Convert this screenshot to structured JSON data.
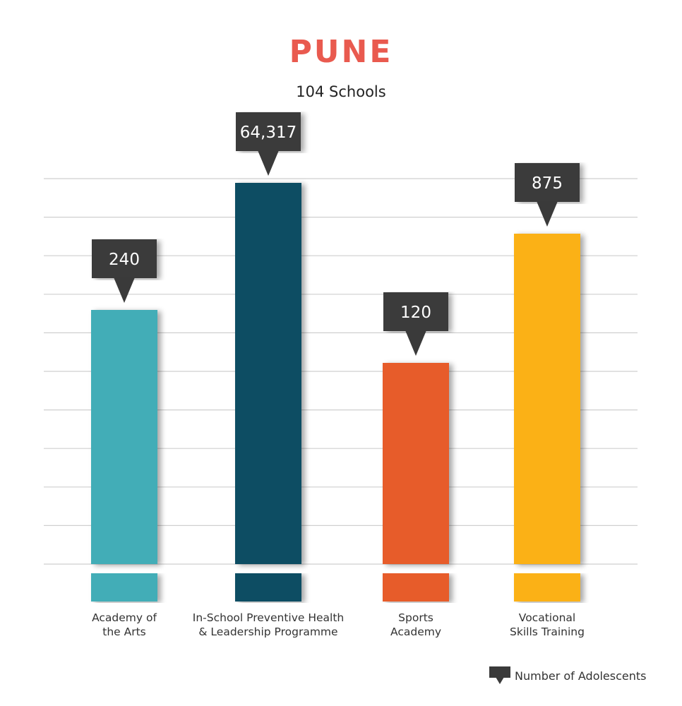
{
  "header": {
    "title": "PUNE",
    "subtitle": "104 Schools"
  },
  "colors": {
    "title": "#e95a4f",
    "callout": "#3a3a3a",
    "grid": "#cfcfcf"
  },
  "legend": {
    "label": "Number of Adolescents"
  },
  "chart_data": {
    "type": "bar",
    "title": "PUNE",
    "subtitle": "104 Schools",
    "categories": [
      "Academy of\nthe Arts",
      "In-School Preventive Health\n& Leadership Programme",
      "Sports\nAcademy",
      "Vocational\nSkills Training"
    ],
    "series": [
      {
        "name": "Number of Adolescents",
        "values": [
          240,
          64317,
          120,
          875
        ],
        "value_labels": [
          "240",
          "64,317",
          "120",
          "875"
        ],
        "colors": [
          "#42adb7",
          "#094e64",
          "#e75b29",
          "#fbb116"
        ]
      }
    ],
    "relative_heights": [
      0.6,
      0.9,
      0.475,
      0.78
    ],
    "grid": true,
    "legend_position": "bottom-right",
    "xlabel": "",
    "ylabel": ""
  }
}
